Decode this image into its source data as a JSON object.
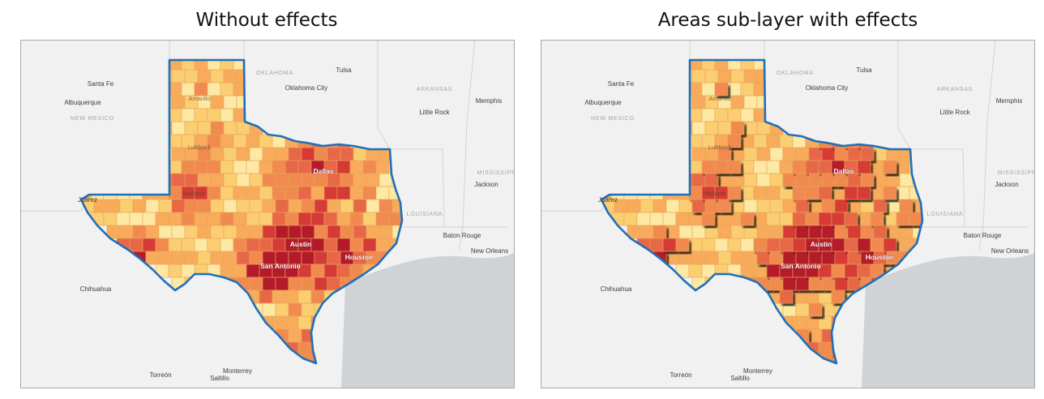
{
  "titles": {
    "left": "Without effects",
    "right": "Areas sub-layer with effects"
  },
  "colors": {
    "water": "#cfd3d6",
    "land": "#f1f1f1",
    "state_border": "#d3d3d3",
    "texas_outline": "#1f6fba",
    "county_border": "#e8a55c",
    "ramp": [
      "#fde9a3",
      "#fbce72",
      "#f8ab5b",
      "#f18a4f",
      "#e76747",
      "#d63a36",
      "#b51a2b"
    ]
  },
  "labels": {
    "santa_fe": "Santa Fe",
    "albuquerque": "Albuquerque",
    "new_mexico": "NEW MEXICO",
    "oklahoma": "OKLAHOMA",
    "oklahoma_city": "Oklahoma City",
    "tulsa": "Tulsa",
    "arkansas": "ARKANSAS",
    "little_rock": "Little Rock",
    "memphis": "Memphis",
    "mississippi": "MISSISSIPPI",
    "jackson": "Jackson",
    "louisiana": "LOUISIANA",
    "baton_rouge": "Baton Rouge",
    "new_orleans": "New Orleans",
    "chihuahua": "Chihuahua",
    "torreon": "Torreón",
    "monterrey": "Monterrey",
    "saltillo": "Saltillo",
    "juarez": "Juárez",
    "amarillo": "Amarillo",
    "lubbock": "Lubbock",
    "midland": "Midland",
    "dallas": "Dallas",
    "austin": "Austin",
    "san_antonio": "San Antonio",
    "houston": "Houston"
  }
}
